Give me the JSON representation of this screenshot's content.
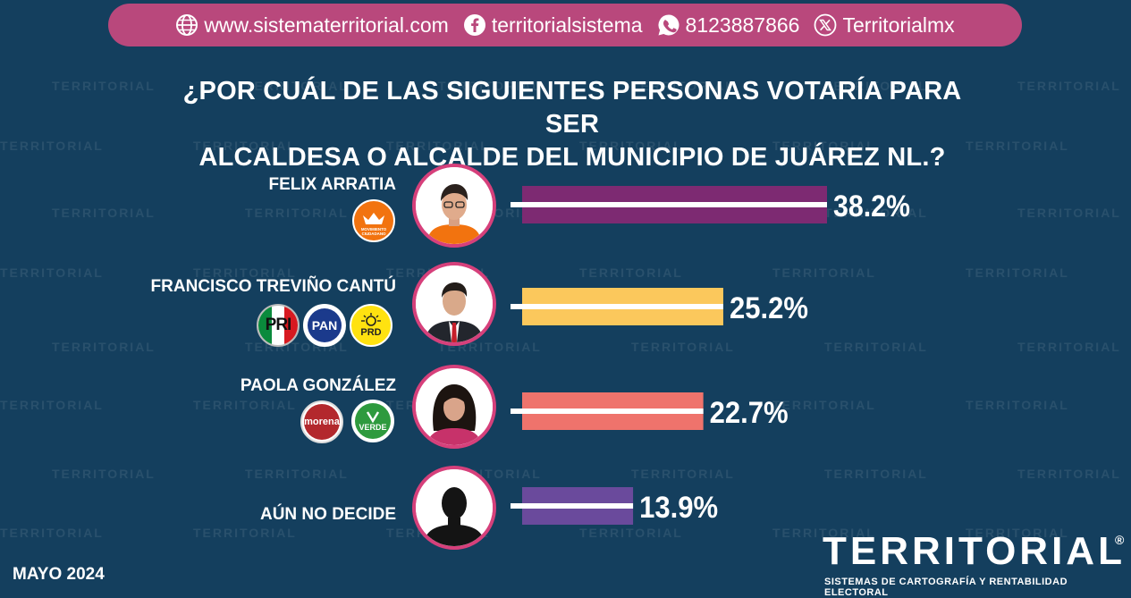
{
  "header": {
    "website": "www.sistematerritorial.com",
    "facebook": "territorialsistema",
    "whatsapp": "8123887866",
    "x": "Territorialmx"
  },
  "title_line1": "¿POR CUÁL DE LAS SIGUIENTES PERSONAS VOTARÍA PARA SER",
  "title_line2": "ALCALDESA O ALCALDE DEL MUNICIPIO DE JUÁREZ NL.?",
  "watermark": "TERRITORIAL",
  "parties": {
    "mc": "MOVIMIENTO CIUDADANO",
    "pri": "PRI",
    "pan": "PAN",
    "prd": "PRD",
    "morena": "morena",
    "verde": "VERDE"
  },
  "footer": {
    "date": "MAYO 2024",
    "brand": "TERRITORIAL",
    "brand_mark": "®",
    "tagline": "SISTEMAS DE CARTOGRAFÍA Y RENTABILIDAD ELECTORAL"
  },
  "colors": {
    "background": "#143f5e",
    "header": "#b9487c",
    "ring": "#d6407b"
  },
  "chart_data": {
    "type": "bar",
    "orientation": "horizontal",
    "categories": [
      "FELIX ARRATIA",
      "FRANCISCO TREVIÑO CANTÚ",
      "PAOLA GONZÁLEZ",
      "AÚN NO DECIDE"
    ],
    "values": [
      38.2,
      25.2,
      22.7,
      13.9
    ],
    "value_labels": [
      "38.2%",
      "25.2%",
      "22.7%",
      "13.9%"
    ],
    "colors": [
      "#7d2a72",
      "#fbc85c",
      "#ef736c",
      "#6a4a9c"
    ],
    "unit": "%"
  }
}
